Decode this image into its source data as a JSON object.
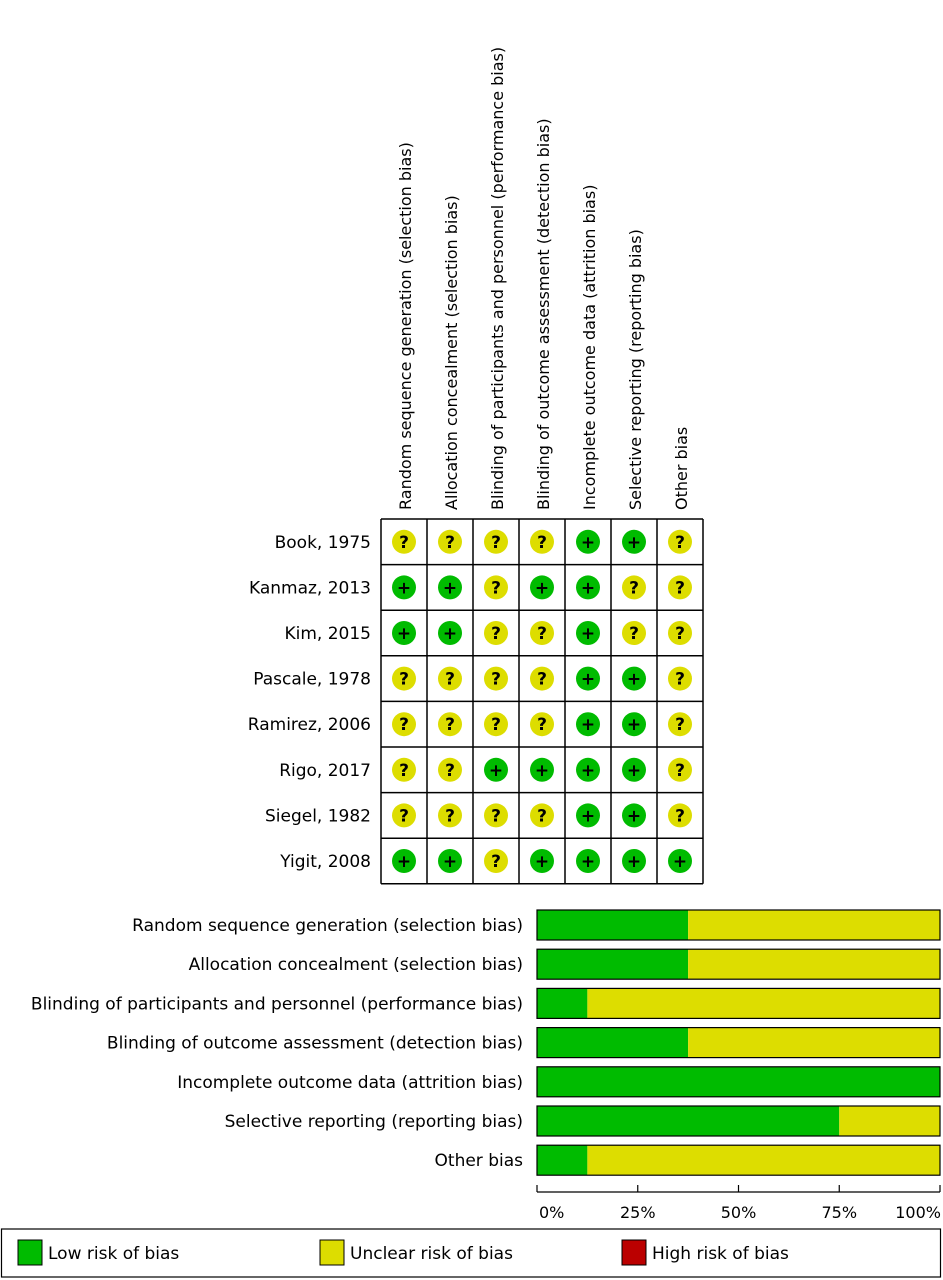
{
  "colors": {
    "low": "#00bb00",
    "unclear": "#dddd00",
    "high": "#bb0000"
  },
  "symbols": {
    "low": "+",
    "unclear": "?",
    "high": "−"
  },
  "chart_data": [
    {
      "type": "heatmap",
      "title": "",
      "domains": [
        "Random sequence generation (selection bias)",
        "Allocation concealment (selection bias)",
        "Blinding of participants and personnel (performance bias)",
        "Blinding of outcome assessment (detection bias)",
        "Incomplete outcome data (attrition bias)",
        "Selective reporting (reporting bias)",
        "Other bias"
      ],
      "studies": [
        "Book, 1975",
        "Kanmaz, 2013",
        "Kim, 2015",
        "Pascale, 1978",
        "Ramirez, 2006",
        "Rigo, 2017",
        "Siegel, 1982",
        "Yigit, 2008"
      ],
      "judgements": [
        [
          "unclear",
          "unclear",
          "unclear",
          "unclear",
          "low",
          "low",
          "unclear"
        ],
        [
          "low",
          "low",
          "unclear",
          "low",
          "low",
          "unclear",
          "unclear"
        ],
        [
          "low",
          "low",
          "unclear",
          "unclear",
          "low",
          "unclear",
          "unclear"
        ],
        [
          "unclear",
          "unclear",
          "unclear",
          "unclear",
          "low",
          "low",
          "unclear"
        ],
        [
          "unclear",
          "unclear",
          "unclear",
          "unclear",
          "low",
          "low",
          "unclear"
        ],
        [
          "unclear",
          "unclear",
          "low",
          "low",
          "low",
          "low",
          "unclear"
        ],
        [
          "unclear",
          "unclear",
          "unclear",
          "unclear",
          "low",
          "low",
          "unclear"
        ],
        [
          "low",
          "low",
          "unclear",
          "low",
          "low",
          "low",
          "low"
        ]
      ]
    },
    {
      "type": "bar",
      "stacked": true,
      "orientation": "horizontal",
      "title": "",
      "categories": [
        "Random sequence generation (selection bias)",
        "Allocation concealment (selection bias)",
        "Blinding of participants and personnel (performance bias)",
        "Blinding of outcome assessment (detection bias)",
        "Incomplete outcome data (attrition bias)",
        "Selective reporting (reporting bias)",
        "Other bias"
      ],
      "series": [
        {
          "name": "Low risk of bias",
          "key": "low",
          "values": [
            37.5,
            37.5,
            12.5,
            37.5,
            100,
            75,
            12.5
          ]
        },
        {
          "name": "Unclear risk of bias",
          "key": "unclear",
          "values": [
            62.5,
            62.5,
            87.5,
            62.5,
            0,
            25,
            87.5
          ]
        },
        {
          "name": "High risk of bias",
          "key": "high",
          "values": [
            0,
            0,
            0,
            0,
            0,
            0,
            0
          ]
        }
      ],
      "xlim": [
        0,
        100
      ],
      "x_ticks": [
        0,
        25,
        50,
        75,
        100
      ],
      "x_tick_labels": [
        "0%",
        "25%",
        "50%",
        "75%",
        "100%"
      ],
      "legend": {
        "position": "bottom",
        "items": [
          "Low risk of bias",
          "Unclear risk of bias",
          "High risk of bias"
        ]
      }
    }
  ]
}
